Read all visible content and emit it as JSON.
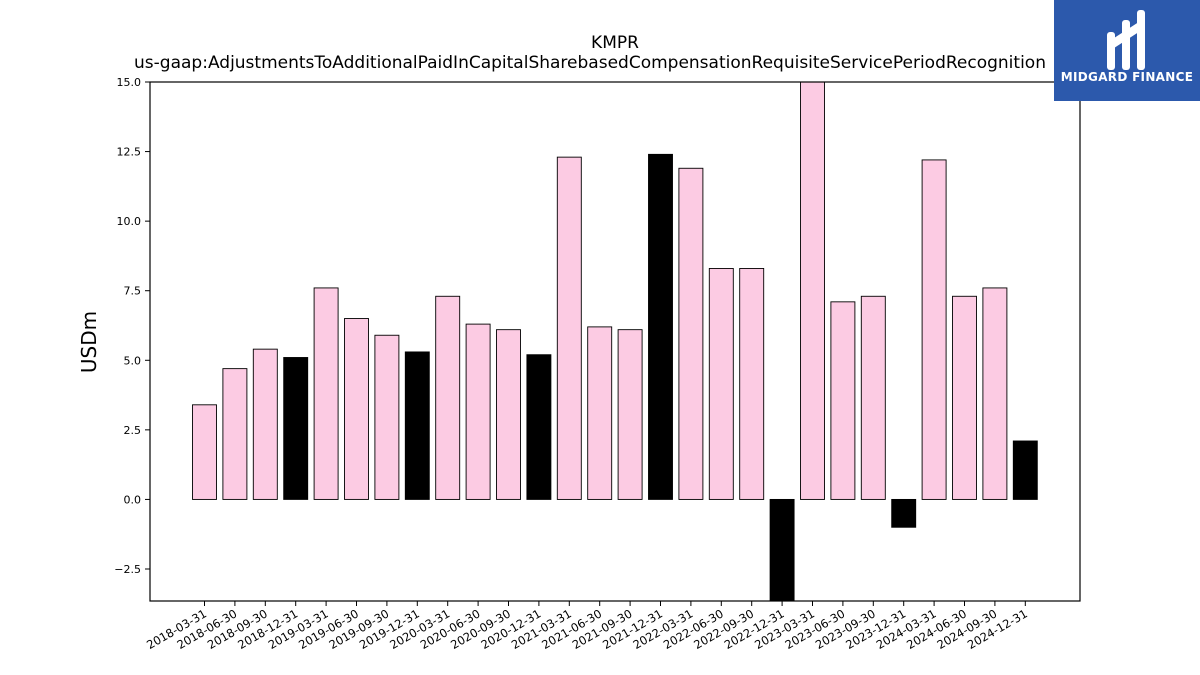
{
  "chart_data": {
    "type": "bar",
    "title": "KMPR",
    "subtitle": "us-gaap:AdjustmentsToAdditionalPaidInCapitalSharebasedCompensationRequisiteServicePeriodRecognition",
    "xlabel": "",
    "ylabel": "USDm",
    "ylim": [
      -3.65,
      15.0
    ],
    "yticks": [
      -2.5,
      0.0,
      2.5,
      5.0,
      7.5,
      10.0,
      12.5,
      15.0
    ],
    "ytick_labels": [
      "−2.5",
      "0.0",
      "2.5",
      "5.0",
      "7.5",
      "10.0",
      "12.5",
      "15.0"
    ],
    "grid": false,
    "categories": [
      "2018-03-31",
      "2018-06-30",
      "2018-09-30",
      "2018-12-31",
      "2019-03-31",
      "2019-06-30",
      "2019-09-30",
      "2019-12-31",
      "2020-03-31",
      "2020-06-30",
      "2020-09-30",
      "2020-12-31",
      "2021-03-31",
      "2021-06-30",
      "2021-09-30",
      "2021-12-31",
      "2022-03-31",
      "2022-06-30",
      "2022-09-30",
      "2022-12-31",
      "2023-03-31",
      "2023-06-30",
      "2023-09-30",
      "2023-12-31",
      "2024-03-31",
      "2024-06-30",
      "2024-09-30",
      "2024-12-31"
    ],
    "values": [
      3.4,
      4.7,
      5.4,
      5.1,
      7.6,
      6.5,
      5.9,
      5.3,
      7.3,
      6.3,
      6.1,
      5.2,
      12.3,
      6.2,
      6.1,
      12.4,
      11.9,
      8.3,
      8.3,
      -3.65,
      15.0,
      7.1,
      7.3,
      -1.0,
      12.2,
      7.3,
      7.6,
      2.1
    ],
    "colors": {
      "quarter": "#fccbe3",
      "year_end": "#000000",
      "edge": "#000000"
    }
  },
  "logo": {
    "text": "MIDGARD FINANCE",
    "background": "#2c59ac"
  }
}
